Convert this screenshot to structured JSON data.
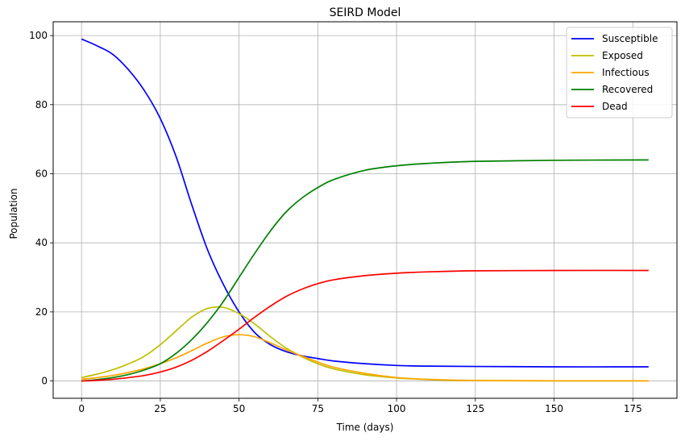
{
  "chart_data": {
    "type": "line",
    "title": "SEIRD Model",
    "xlabel": "Time (days)",
    "ylabel": "Population",
    "xlim": [
      -9,
      189
    ],
    "ylim": [
      -5,
      104
    ],
    "xticks": [
      0,
      25,
      50,
      75,
      100,
      125,
      150,
      175
    ],
    "yticks": [
      0,
      20,
      40,
      60,
      80,
      100
    ],
    "grid": true,
    "legend_position": "top-right",
    "x": [
      0,
      5,
      10,
      15,
      20,
      25,
      30,
      35,
      40,
      45,
      50,
      55,
      60,
      65,
      70,
      75,
      80,
      90,
      100,
      110,
      125,
      150,
      180
    ],
    "series": [
      {
        "name": "Susceptible",
        "color": "#0000ff",
        "values": [
          99,
          97,
          94.5,
          90,
          84,
          76,
          65,
          51,
          38,
          28,
          20,
          14,
          10.5,
          8.5,
          7.3,
          6.5,
          5.8,
          5,
          4.5,
          4.3,
          4.2,
          4.1,
          4.1
        ]
      },
      {
        "name": "Exposed",
        "color": "#bfbf00",
        "values": [
          1,
          2,
          3.3,
          5,
          7.2,
          10.5,
          14.5,
          18.5,
          21,
          21.3,
          19.5,
          16.5,
          12.8,
          9.5,
          7,
          5,
          3.5,
          1.8,
          0.9,
          0.4,
          0.1,
          0.05,
          0.05
        ]
      },
      {
        "name": "Infectious",
        "color": "#ffa500",
        "values": [
          0.5,
          1,
          1.6,
          2.5,
          3.6,
          5,
          6.7,
          8.8,
          11,
          12.8,
          13.4,
          12.8,
          11,
          9,
          7.2,
          5.5,
          4,
          2.2,
          1,
          0.5,
          0.15,
          0.05,
          0.05
        ]
      },
      {
        "name": "Recovered",
        "color": "#008000",
        "values": [
          0,
          0.4,
          1,
          1.9,
          3.2,
          5,
          8,
          12,
          17,
          23,
          30,
          37,
          43.5,
          49,
          53,
          56,
          58.3,
          61,
          62.3,
          63,
          63.6,
          63.9,
          64
        ]
      },
      {
        "name": "Dead",
        "color": "#ff0000",
        "values": [
          0,
          0.2,
          0.5,
          1,
          1.6,
          2.6,
          4,
          6,
          8.6,
          11.7,
          15,
          18.5,
          21.7,
          24.5,
          26.6,
          28.2,
          29.3,
          30.5,
          31.2,
          31.6,
          31.9,
          32,
          32
        ]
      }
    ]
  }
}
